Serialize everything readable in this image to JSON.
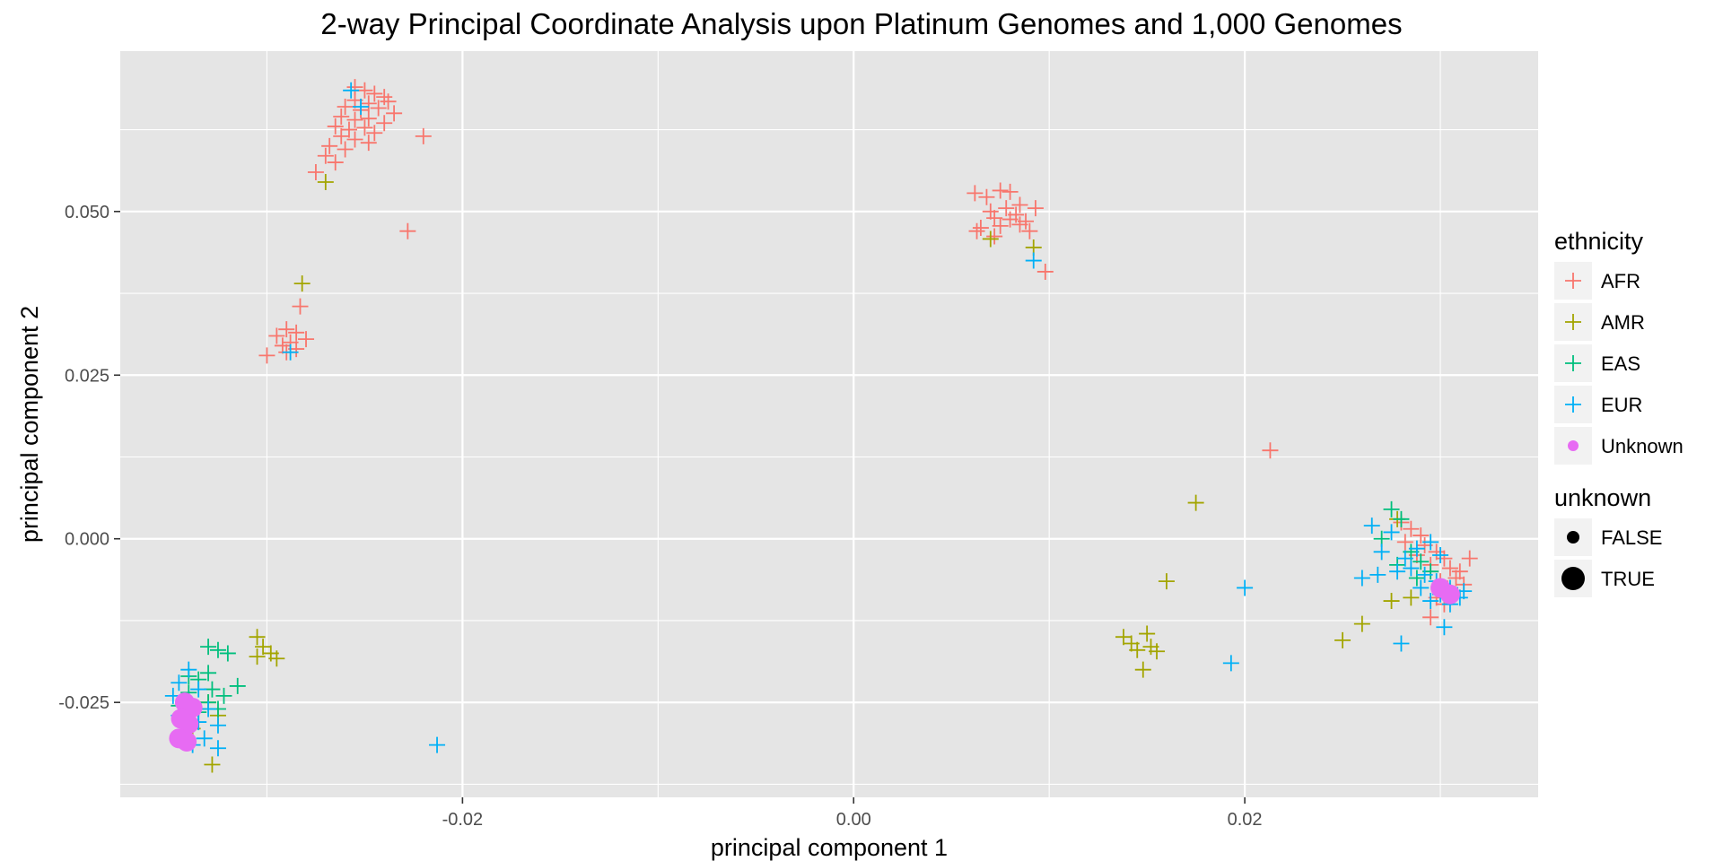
{
  "chart_data": {
    "type": "scatter",
    "title": "2-way Principal Coordinate Analysis upon Platinum Genomes and 1,000 Genomes",
    "xlabel": "principal component 1",
    "ylabel": "principal component 2",
    "xlim": [
      -0.0375,
      0.035
    ],
    "ylim": [
      -0.0395,
      0.0745
    ],
    "x_ticks": [
      -0.02,
      0.0,
      0.02
    ],
    "x_tick_labels": [
      "-0.02",
      "0.00",
      "0.02"
    ],
    "y_ticks": [
      -0.025,
      0.0,
      0.025,
      0.05
    ],
    "y_tick_labels": [
      "-0.025",
      "0.000",
      "0.025",
      "0.050"
    ],
    "grid": true,
    "background": "#e5e5e5",
    "legend_position": "right",
    "legends": [
      {
        "title": "ethnicity",
        "entries": [
          {
            "label": "AFR",
            "color": "#f8766d",
            "shape": "plus"
          },
          {
            "label": "AMR",
            "color": "#a3a500",
            "shape": "plus"
          },
          {
            "label": "EAS",
            "color": "#00bf7d",
            "shape": "plus"
          },
          {
            "label": "EUR",
            "color": "#00b0f6",
            "shape": "plus"
          },
          {
            "label": "Unknown",
            "color": "#e76bf3",
            "shape": "circle"
          }
        ]
      },
      {
        "title": "unknown",
        "entries": [
          {
            "label": "FALSE",
            "color": "#000000",
            "shape": "circle-small"
          },
          {
            "label": "TRUE",
            "color": "#000000",
            "shape": "circle-large"
          }
        ]
      }
    ],
    "series": [
      {
        "name": "AFR",
        "color": "#f8766d",
        "shape": "plus",
        "points": [
          [
            -0.0255,
            0.069
          ],
          [
            -0.025,
            0.0685
          ],
          [
            -0.0245,
            0.068
          ],
          [
            -0.024,
            0.0675
          ],
          [
            -0.0255,
            0.067
          ],
          [
            -0.0248,
            0.0665
          ],
          [
            -0.0238,
            0.0668
          ],
          [
            -0.026,
            0.066
          ],
          [
            -0.0252,
            0.0655
          ],
          [
            -0.0243,
            0.0658
          ],
          [
            -0.0235,
            0.065
          ],
          [
            -0.0262,
            0.0645
          ],
          [
            -0.0255,
            0.064
          ],
          [
            -0.0248,
            0.0642
          ],
          [
            -0.024,
            0.0635
          ],
          [
            -0.0265,
            0.063
          ],
          [
            -0.0258,
            0.0625
          ],
          [
            -0.025,
            0.0628
          ],
          [
            -0.0245,
            0.062
          ],
          [
            -0.0262,
            0.0615
          ],
          [
            -0.0255,
            0.061
          ],
          [
            -0.0248,
            0.0605
          ],
          [
            -0.0268,
            0.06
          ],
          [
            -0.026,
            0.0595
          ],
          [
            -0.027,
            0.0585
          ],
          [
            -0.0265,
            0.0575
          ],
          [
            -0.0275,
            0.056
          ],
          [
            -0.022,
            0.0615
          ],
          [
            -0.0228,
            0.047
          ],
          [
            -0.0283,
            0.0355
          ],
          [
            -0.029,
            0.032
          ],
          [
            -0.0285,
            0.0315
          ],
          [
            -0.0295,
            0.031
          ],
          [
            -0.028,
            0.0305
          ],
          [
            -0.0288,
            0.03
          ],
          [
            -0.0292,
            0.0295
          ],
          [
            -0.0285,
            0.029
          ],
          [
            -0.029,
            0.0285
          ],
          [
            -0.03,
            0.028
          ],
          [
            0.0062,
            0.0528
          ],
          [
            0.0068,
            0.0522
          ],
          [
            0.0075,
            0.0532
          ],
          [
            0.008,
            0.053
          ],
          [
            0.0085,
            0.051
          ],
          [
            0.0078,
            0.0505
          ],
          [
            0.007,
            0.05
          ],
          [
            0.0072,
            0.049
          ],
          [
            0.008,
            0.0488
          ],
          [
            0.0088,
            0.0485
          ],
          [
            0.0093,
            0.0505
          ],
          [
            0.0083,
            0.0495
          ],
          [
            0.0065,
            0.0475
          ],
          [
            0.0075,
            0.0478
          ],
          [
            0.0085,
            0.048
          ],
          [
            0.009,
            0.047
          ],
          [
            0.0063,
            0.047
          ],
          [
            0.0072,
            0.0462
          ],
          [
            0.0098,
            0.0408
          ],
          [
            0.0213,
            0.0135
          ],
          [
            0.028,
            0.0025
          ],
          [
            0.0285,
            0.0015
          ],
          [
            0.029,
            0.0005
          ],
          [
            0.0282,
            -0.0005
          ],
          [
            0.0292,
            -0.001
          ],
          [
            0.0298,
            -0.002
          ],
          [
            0.0288,
            -0.0025
          ],
          [
            0.0302,
            -0.003
          ],
          [
            0.0295,
            -0.004
          ],
          [
            0.0305,
            -0.0045
          ],
          [
            0.031,
            -0.005
          ],
          [
            0.0308,
            -0.006
          ],
          [
            0.03,
            -0.0065
          ],
          [
            0.0312,
            -0.007
          ],
          [
            0.0305,
            -0.008
          ],
          [
            0.0298,
            -0.009
          ],
          [
            0.0302,
            -0.01
          ],
          [
            0.0295,
            -0.012
          ],
          [
            0.0315,
            -0.003
          ]
        ]
      },
      {
        "name": "AMR",
        "color": "#a3a500",
        "shape": "plus",
        "points": [
          [
            -0.027,
            0.0545
          ],
          [
            -0.0282,
            0.039
          ],
          [
            0.0092,
            0.0445
          ],
          [
            0.007,
            0.0458
          ],
          [
            -0.0305,
            -0.015
          ],
          [
            -0.0302,
            -0.0165
          ],
          [
            -0.0298,
            -0.0175
          ],
          [
            -0.0305,
            -0.018
          ],
          [
            -0.0295,
            -0.0183
          ],
          [
            -0.033,
            -0.025
          ],
          [
            -0.0335,
            -0.026
          ],
          [
            -0.0325,
            -0.027
          ],
          [
            -0.0338,
            -0.029
          ],
          [
            -0.0328,
            -0.0345
          ],
          [
            0.0175,
            0.0055
          ],
          [
            0.016,
            -0.0065
          ],
          [
            0.0138,
            -0.015
          ],
          [
            0.0142,
            -0.016
          ],
          [
            0.015,
            -0.0145
          ],
          [
            0.0145,
            -0.017
          ],
          [
            0.0152,
            -0.0165
          ],
          [
            0.0155,
            -0.0172
          ],
          [
            0.0148,
            -0.02
          ],
          [
            0.026,
            -0.013
          ],
          [
            0.025,
            -0.0155
          ],
          [
            0.0275,
            -0.0095
          ],
          [
            0.0285,
            -0.009
          ],
          [
            0.0278,
            0.003
          ]
        ]
      },
      {
        "name": "EAS",
        "color": "#00bf7d",
        "shape": "plus",
        "points": [
          [
            -0.033,
            -0.0165
          ],
          [
            -0.0325,
            -0.017
          ],
          [
            -0.032,
            -0.0175
          ],
          [
            -0.0315,
            -0.0225
          ],
          [
            -0.033,
            -0.0205
          ],
          [
            -0.0335,
            -0.0215
          ],
          [
            -0.034,
            -0.021
          ],
          [
            -0.0328,
            -0.023
          ],
          [
            -0.0322,
            -0.024
          ],
          [
            -0.034,
            -0.0235
          ],
          [
            -0.033,
            -0.025
          ],
          [
            -0.0345,
            -0.0255
          ],
          [
            -0.0335,
            -0.0265
          ],
          [
            -0.0325,
            -0.026
          ],
          [
            0.0275,
            0.0045
          ],
          [
            0.028,
            0.003
          ],
          [
            0.027,
            0.0
          ],
          [
            0.0285,
            -0.002
          ],
          [
            0.029,
            -0.0035
          ],
          [
            0.0278,
            -0.004
          ],
          [
            0.0295,
            -0.005
          ],
          [
            0.0288,
            -0.006
          ]
        ]
      },
      {
        "name": "EUR",
        "color": "#00b0f6",
        "shape": "plus",
        "points": [
          [
            -0.0257,
            0.0685
          ],
          [
            -0.0252,
            0.066
          ],
          [
            -0.0288,
            0.0285
          ],
          [
            0.0092,
            0.0425
          ],
          [
            -0.034,
            -0.02
          ],
          [
            -0.0345,
            -0.022
          ],
          [
            -0.0335,
            -0.023
          ],
          [
            -0.0348,
            -0.024
          ],
          [
            -0.034,
            -0.025
          ],
          [
            -0.033,
            -0.026
          ],
          [
            -0.0345,
            -0.027
          ],
          [
            -0.0335,
            -0.028
          ],
          [
            -0.0325,
            -0.0285
          ],
          [
            -0.0342,
            -0.0295
          ],
          [
            -0.0332,
            -0.0305
          ],
          [
            -0.0338,
            -0.0315
          ],
          [
            -0.0325,
            -0.032
          ],
          [
            -0.0213,
            -0.0315
          ],
          [
            0.02,
            -0.0075
          ],
          [
            0.0193,
            -0.019
          ],
          [
            0.028,
            -0.016
          ],
          [
            0.0302,
            -0.0135
          ],
          [
            0.0265,
            0.002
          ],
          [
            0.0275,
            0.001
          ],
          [
            0.027,
            -0.002
          ],
          [
            0.0282,
            -0.003
          ],
          [
            0.0278,
            -0.005
          ],
          [
            0.0268,
            -0.0055
          ],
          [
            0.026,
            -0.006
          ],
          [
            0.0285,
            -0.0045
          ],
          [
            0.0292,
            -0.0055
          ],
          [
            0.0298,
            -0.0065
          ],
          [
            0.029,
            -0.0075
          ],
          [
            0.0305,
            -0.0075
          ],
          [
            0.03,
            -0.0085
          ],
          [
            0.031,
            -0.009
          ],
          [
            0.0295,
            -0.0095
          ],
          [
            0.0305,
            -0.01
          ],
          [
            0.0312,
            -0.008
          ],
          [
            0.0288,
            -0.0015
          ],
          [
            0.0295,
            -0.0005
          ],
          [
            0.03,
            -0.0025
          ]
        ]
      },
      {
        "name": "Unknown",
        "color": "#e76bf3",
        "shape": "circle",
        "points": [
          [
            -0.0342,
            -0.025
          ],
          [
            -0.0338,
            -0.0258
          ],
          [
            -0.0344,
            -0.0275
          ],
          [
            -0.034,
            -0.0283
          ],
          [
            -0.0345,
            -0.0305
          ],
          [
            -0.0341,
            -0.031
          ],
          [
            0.03,
            -0.0075
          ],
          [
            0.0305,
            -0.0085
          ]
        ]
      }
    ]
  }
}
